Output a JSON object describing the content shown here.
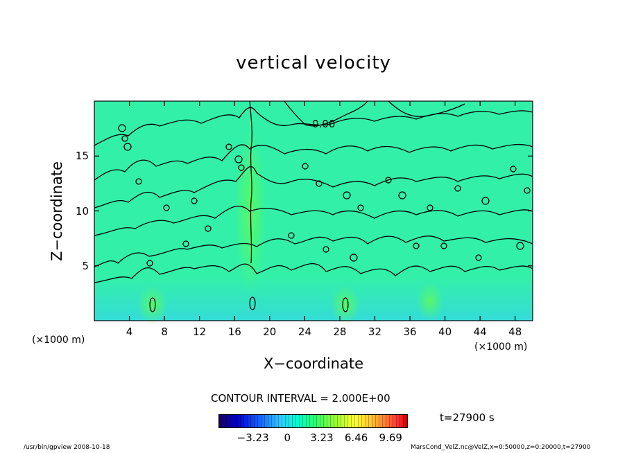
{
  "chart_data": {
    "type": "heatmap",
    "title": "vertical velocity",
    "xlabel": "X−coordinate",
    "ylabel": "Z−coordinate",
    "x_unit": "(×1000 m)",
    "xlim": [
      0,
      50
    ],
    "ylim": [
      0,
      20
    ],
    "x_ticks": [
      4,
      8,
      12,
      16,
      20,
      24,
      28,
      32,
      36,
      40,
      44,
      48
    ],
    "y_ticks": [
      5,
      10,
      15
    ],
    "contour_interval_text": "CONTOUR INTERVAL = 2.000E+00",
    "contour_labels": [
      "0.00"
    ],
    "time_label": "t=27900 s",
    "colorbar": {
      "min": -6.46,
      "max": 11.3,
      "tick_labels": [
        "−3.23",
        "0",
        "3.23",
        "6.46",
        "9.69"
      ],
      "tick_values": [
        -3.23,
        0,
        3.23,
        6.46,
        9.69
      ]
    },
    "features": [
      {
        "kind": "updraft",
        "x": 6.5,
        "z": 1.5,
        "value": 2
      },
      {
        "kind": "updraft",
        "x": 18,
        "z": 1.7,
        "value": 2
      },
      {
        "kind": "updraft",
        "x": 28.5,
        "z": 1.5,
        "value": 2
      }
    ],
    "grid": false,
    "colors": {
      "field": "#33f0a8",
      "background": "#ffffff",
      "contour": "#000000"
    }
  },
  "footer": {
    "left": "/usr/bin/gpview   2008-10-18",
    "right": "MarsCond_VelZ.nc@VelZ,x=0:50000,z=0:20000,t=27900"
  }
}
